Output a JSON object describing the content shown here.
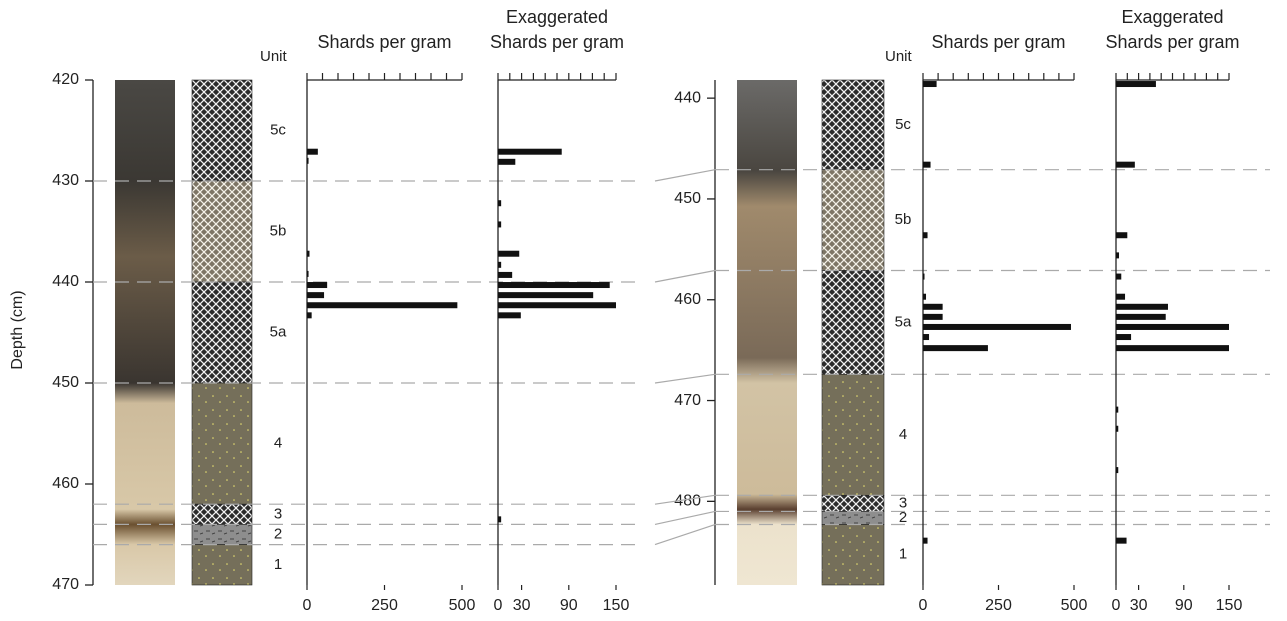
{
  "chart_data": [
    {
      "type": "core-log",
      "ylabel": "Depth (cm)",
      "ylim": [
        420,
        470
      ],
      "yticks": [
        420,
        430,
        440,
        450,
        460,
        470
      ],
      "unit_header": "Unit",
      "units": [
        "5c",
        "5b",
        "5a",
        "4",
        "3",
        "2",
        "1"
      ],
      "boundaries": [
        430,
        440,
        450,
        462,
        464,
        466
      ],
      "panels": [
        {
          "type": "hbar",
          "title": [
            "Shards per gram"
          ],
          "xlim": [
            0,
            500
          ],
          "xticks": [
            0,
            250,
            500
          ],
          "xminor": [
            0,
            50,
            100,
            150,
            200,
            250,
            300,
            350,
            400,
            450,
            500
          ],
          "depths": [
            427.1,
            428.0,
            437.2,
            439.2,
            440.3,
            441.3,
            442.3,
            443.3
          ],
          "values": [
            35,
            5,
            8,
            5,
            65,
            55,
            485,
            15
          ]
        },
        {
          "type": "hbar",
          "title": [
            "Exaggerated",
            "Shards per gram"
          ],
          "xlim": [
            0,
            150
          ],
          "xticks": [
            0,
            30,
            90,
            150
          ],
          "xminor": [
            0,
            15,
            30,
            45,
            60,
            75,
            90,
            105,
            120,
            135,
            150
          ],
          "depths": [
            427.1,
            428.1,
            432.2,
            434.3,
            437.2,
            438.3,
            439.3,
            440.3,
            441.3,
            442.3,
            443.3,
            463.5
          ],
          "values": [
            81,
            22,
            4,
            4,
            27,
            4,
            18,
            142,
            121,
            150,
            29,
            4
          ]
        }
      ]
    },
    {
      "type": "core-log",
      "ylim": [
        438.2,
        488.3
      ],
      "yticks": [
        440,
        450,
        460,
        470,
        480
      ],
      "unit_header": "Unit",
      "units": [
        "5c",
        "5b",
        "5a",
        "4",
        "3",
        "2",
        "1"
      ],
      "boundaries": [
        447.1,
        457.1,
        467.4,
        479.4,
        481.0,
        482.3
      ],
      "panels": [
        {
          "type": "hbar",
          "title": [
            "Shards per gram"
          ],
          "xlim": [
            0,
            500
          ],
          "xticks": [
            0,
            250,
            500
          ],
          "xminor": [
            0,
            50,
            100,
            150,
            200,
            250,
            300,
            350,
            400,
            450,
            500
          ],
          "depths": [
            438.6,
            446.6,
            453.6,
            457.7,
            459.7,
            460.7,
            461.7,
            462.7,
            463.7,
            464.8,
            483.9
          ],
          "values": [
            45,
            25,
            15,
            5,
            10,
            65,
            65,
            490,
            20,
            215,
            15
          ]
        },
        {
          "type": "hbar",
          "title": [
            "Exaggerated",
            "Shards per gram"
          ],
          "xlim": [
            0,
            150
          ],
          "xticks": [
            0,
            30,
            90,
            150
          ],
          "xminor": [
            0,
            15,
            30,
            45,
            60,
            75,
            90,
            105,
            120,
            135,
            150
          ],
          "depths": [
            438.6,
            446.6,
            453.6,
            455.6,
            457.7,
            459.7,
            460.7,
            461.7,
            462.7,
            463.7,
            464.8,
            470.9,
            472.8,
            476.9,
            483.9
          ],
          "values": [
            53,
            25,
            15,
            4,
            7,
            12,
            69,
            66,
            150,
            20,
            150,
            3,
            3,
            3,
            14
          ]
        }
      ]
    }
  ]
}
